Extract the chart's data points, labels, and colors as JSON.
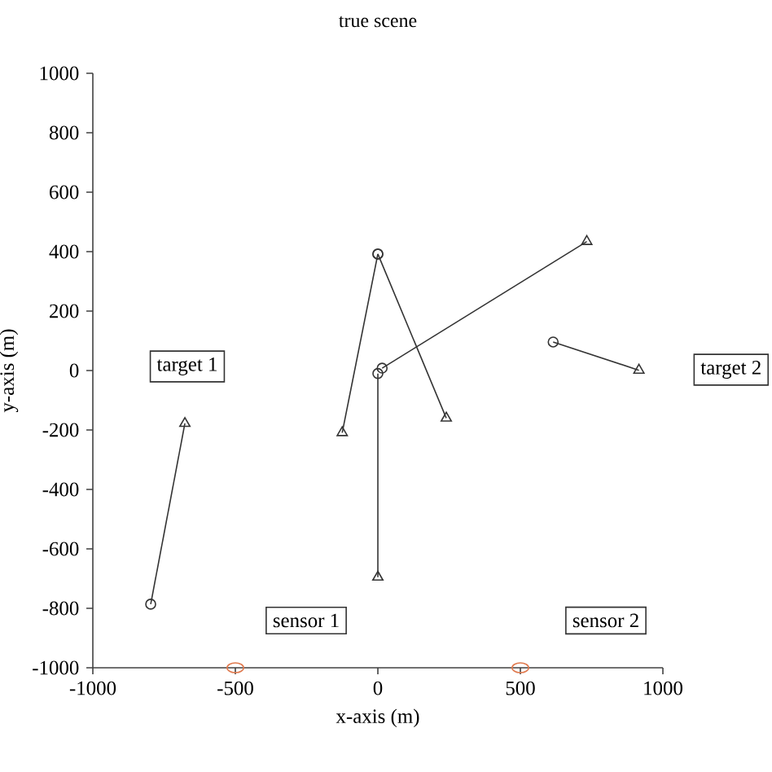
{
  "chart_data": {
    "type": "line",
    "title": "true scene",
    "xlabel": "x-axis (m)",
    "ylabel": "y-axis (m)",
    "xlim": [
      -1000,
      1000
    ],
    "ylim": [
      -1000,
      1000
    ],
    "xticks": [
      -1000,
      -500,
      0,
      500,
      1000
    ],
    "yticks": [
      -1000,
      -800,
      -600,
      -400,
      -200,
      0,
      200,
      400,
      600,
      800,
      1000
    ],
    "series": [
      {
        "color": "#333333",
        "marker": "none",
        "x": [
          -797,
          -677
        ],
        "values": [
          -786,
          -178
        ]
      },
      {
        "color": "#333333",
        "marker": "none",
        "x": [
          0,
          -125
        ],
        "values": [
          392,
          -209
        ]
      },
      {
        "color": "#333333",
        "marker": "none",
        "x": [
          0,
          240
        ],
        "values": [
          392,
          -160
        ]
      },
      {
        "color": "#333333",
        "marker": "none",
        "x": [
          15,
          733
        ],
        "values": [
          8,
          434
        ]
      },
      {
        "color": "#333333",
        "marker": "none",
        "x": [
          0,
          0
        ],
        "values": [
          -10,
          -695
        ]
      },
      {
        "color": "#333333",
        "marker": "none",
        "x": [
          615,
          916
        ],
        "values": [
          96,
          1
        ]
      },
      {
        "type": "scatter",
        "color": "#333333",
        "marker": "circle",
        "x": [
          -797,
          0,
          0,
          15,
          0,
          615
        ],
        "values": [
          -786,
          392,
          392,
          8,
          -10,
          96
        ]
      },
      {
        "type": "scatter",
        "color": "#333333",
        "marker": "triangle",
        "x": [
          -677,
          -125,
          240,
          733,
          0,
          916
        ],
        "values": [
          -178,
          -209,
          -160,
          434,
          -695,
          1
        ]
      },
      {
        "type": "scatter",
        "color": "#e07a4f",
        "marker": "circle",
        "x": [
          -500,
          500
        ],
        "values": [
          -1000,
          -1000
        ]
      }
    ],
    "annotations": [
      "target 1",
      "target 2",
      "sensor 1",
      "sensor 2"
    ]
  }
}
